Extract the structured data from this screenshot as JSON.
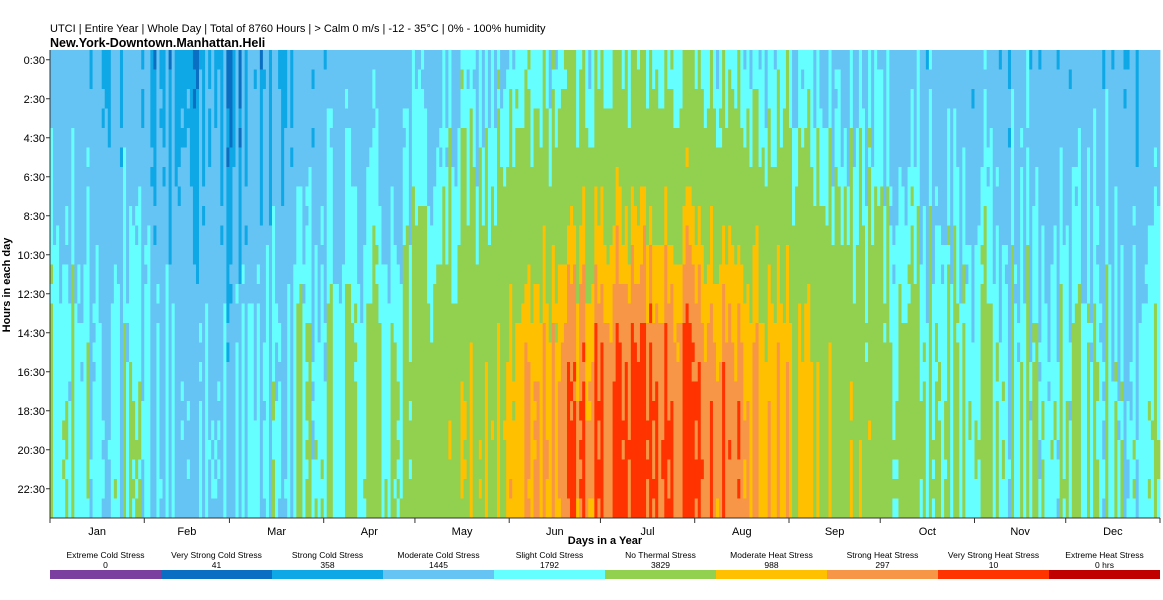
{
  "header": {
    "title": "UTCI | Entire Year | Whole Day | Total of 8760 Hours | > Calm 0 m/s | -12 - 35°C | 0% - 100% humidity",
    "location": "New.York-Downtown.Manhattan.Heli"
  },
  "chart_data": {
    "type": "heatmap",
    "title": "UTCI | Entire Year | Whole Day | Total of 8760 Hours | > Calm 0 m/s | -12 - 35°C | 0% - 100% humidity",
    "subtitle": "New.York-Downtown.Manhattan.Heli",
    "xlabel": "Days in a Year",
    "ylabel": "Hours in each day",
    "x_range": [
      1,
      365
    ],
    "y_range": [
      0,
      24
    ],
    "months": [
      "Jan",
      "Feb",
      "Mar",
      "Apr",
      "May",
      "Jun",
      "Jul",
      "Aug",
      "Sep",
      "Oct",
      "Nov",
      "Dec"
    ],
    "month_days": [
      31,
      28,
      31,
      30,
      31,
      30,
      31,
      31,
      30,
      31,
      30,
      31
    ],
    "hour_ticks": [
      "0:30",
      "2:30",
      "4:30",
      "6:30",
      "8:30",
      "10:30",
      "12:30",
      "14:30",
      "16:30",
      "18:30",
      "20:30",
      "22:30"
    ],
    "categories": [
      {
        "name": "Extreme Cold Stress",
        "hours": "0",
        "color": "#7b3fa0"
      },
      {
        "name": "Very Strong Cold Stress",
        "hours": "41",
        "color": "#0a6fc2"
      },
      {
        "name": "Strong Cold Stress",
        "hours": "358",
        "color": "#0fa8e6"
      },
      {
        "name": "Moderate Cold Stress",
        "hours": "1445",
        "color": "#66c4f4"
      },
      {
        "name": "Slight Cold Stress",
        "hours": "1792",
        "color": "#66ffff"
      },
      {
        "name": "No Thermal Stress",
        "hours": "3829",
        "color": "#92d050"
      },
      {
        "name": "Moderate Heat Stress",
        "hours": "988",
        "color": "#ffc000"
      },
      {
        "name": "Strong Heat Stress",
        "hours": "297",
        "color": "#f79646"
      },
      {
        "name": "Very Strong Heat Stress",
        "hours": "10",
        "color": "#ff3300"
      },
      {
        "name": "Extreme Heat Stress",
        "hours": "0 hrs",
        "color": "#c00000"
      }
    ]
  }
}
